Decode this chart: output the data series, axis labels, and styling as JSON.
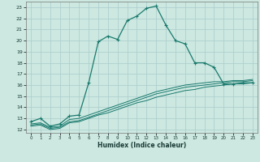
{
  "xlabel": "Humidex (Indice chaleur)",
  "xlim": [
    -0.5,
    23.5
  ],
  "ylim": [
    11.7,
    23.5
  ],
  "xticks": [
    0,
    1,
    2,
    3,
    4,
    5,
    6,
    7,
    8,
    9,
    10,
    11,
    12,
    13,
    14,
    15,
    16,
    17,
    18,
    19,
    20,
    21,
    22,
    23
  ],
  "yticks": [
    12,
    13,
    14,
    15,
    16,
    17,
    18,
    19,
    20,
    21,
    22,
    23
  ],
  "bg_color": "#cce8e0",
  "line_color": "#1a7a6e",
  "grid_color": "#aacccc",
  "main_line_x": [
    0,
    1,
    2,
    3,
    4,
    5,
    6,
    7,
    8,
    9,
    10,
    11,
    12,
    13,
    14,
    15,
    16,
    17,
    18,
    19,
    20,
    21,
    22,
    23
  ],
  "main_line_y": [
    12.7,
    13.0,
    12.3,
    12.5,
    13.2,
    13.3,
    16.2,
    19.9,
    20.4,
    20.1,
    21.8,
    22.2,
    22.9,
    23.1,
    21.4,
    20.0,
    19.7,
    18.0,
    18.0,
    17.6,
    16.1,
    16.1,
    16.2,
    16.2
  ],
  "line2_x": [
    0,
    1,
    2,
    3,
    4,
    5,
    6,
    7,
    8,
    9,
    10,
    11,
    12,
    13,
    14,
    15,
    16,
    17,
    18,
    19,
    20,
    21,
    22,
    23
  ],
  "line2_y": [
    12.5,
    12.6,
    12.2,
    12.3,
    12.9,
    13.0,
    13.3,
    13.6,
    13.9,
    14.2,
    14.5,
    14.8,
    15.1,
    15.4,
    15.6,
    15.8,
    16.0,
    16.1,
    16.2,
    16.3,
    16.3,
    16.4,
    16.4,
    16.5
  ],
  "line3_x": [
    0,
    1,
    2,
    3,
    4,
    5,
    6,
    7,
    8,
    9,
    10,
    11,
    12,
    13,
    14,
    15,
    16,
    17,
    18,
    19,
    20,
    21,
    22,
    23
  ],
  "line3_y": [
    12.4,
    12.5,
    12.1,
    12.2,
    12.7,
    12.8,
    13.1,
    13.4,
    13.7,
    14.0,
    14.3,
    14.6,
    14.9,
    15.2,
    15.4,
    15.6,
    15.8,
    15.9,
    16.0,
    16.1,
    16.2,
    16.3,
    16.3,
    16.4
  ],
  "line4_x": [
    0,
    1,
    2,
    3,
    4,
    5,
    6,
    7,
    8,
    9,
    10,
    11,
    12,
    13,
    14,
    15,
    16,
    17,
    18,
    19,
    20,
    21,
    22,
    23
  ],
  "line4_y": [
    12.3,
    12.4,
    12.0,
    12.1,
    12.6,
    12.7,
    13.0,
    13.3,
    13.5,
    13.8,
    14.1,
    14.4,
    14.6,
    14.9,
    15.1,
    15.3,
    15.5,
    15.6,
    15.8,
    15.9,
    16.0,
    16.1,
    16.1,
    16.2
  ]
}
